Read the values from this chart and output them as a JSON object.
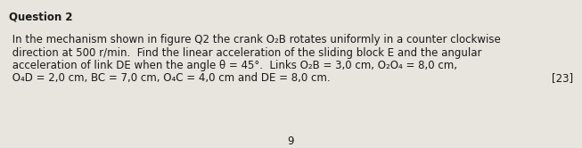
{
  "title": "Question 2",
  "title_fontsize": 8.5,
  "title_fontweight": "bold",
  "body_lines": [
    " In the mechanism shown in figure Q2 the crank O₂B rotates uniformly in a counter clockwise",
    " direction at 500 r/min.  Find the linear acceleration of the sliding block E and the angular",
    " acceleration of link DE when the angle θ = 45°.  Links O₂B = 3,0 cm, O₂O₄ = 8,0 cm,",
    " O₄D = 2,0 cm, BC = 7,0 cm, O₄C = 4,0 cm and DE = 8,0 cm."
  ],
  "mark": "[23]",
  "page_number": "9",
  "body_fontsize": 8.5,
  "background_color": "#e8e4de",
  "text_color": "#1a1a1a",
  "fig_width": 6.53,
  "fig_height": 1.66,
  "dpi": 100
}
